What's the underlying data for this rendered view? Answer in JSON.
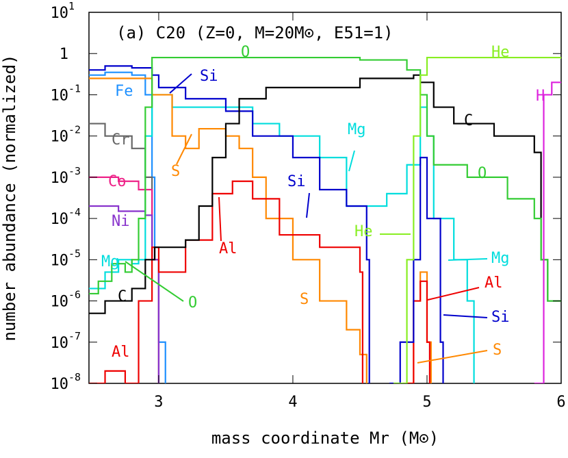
{
  "chart_data": {
    "type": "line",
    "step": true,
    "ylog": true,
    "title": "(a) C20 (Z=0, M=20M⊙, E51=1)",
    "xlabel": "mass coordinate Mr (M⊙)",
    "ylabel": "number abundance (normalized)",
    "xlim": [
      2.48,
      6
    ],
    "ylim": [
      1e-08,
      10
    ],
    "xticks": [
      3,
      4,
      5,
      6
    ],
    "yticks": [
      {
        "value": 10,
        "label": "10",
        "exponent": "1"
      },
      1,
      {
        "value": 0.1,
        "label": "10",
        "exponent": "-1"
      },
      {
        "value": 0.01,
        "label": "10",
        "exponent": "-2"
      },
      {
        "value": 0.001,
        "label": "10",
        "exponent": "-3"
      },
      {
        "value": 0.0001,
        "label": "10",
        "exponent": "-4"
      },
      {
        "value": 1e-05,
        "label": "10",
        "exponent": "-5"
      },
      {
        "value": 1e-06,
        "label": "10",
        "exponent": "-6"
      },
      {
        "value": 1e-07,
        "label": "10",
        "exponent": "-7"
      },
      {
        "value": 1e-08,
        "label": "10",
        "exponent": "-8"
      }
    ],
    "series": [
      {
        "name": "Fe",
        "color": "#1e90ff",
        "x": [
          2.48,
          2.6,
          2.8,
          2.9,
          2.95,
          2.97,
          3.0,
          3.05
        ],
        "values": [
          0.3,
          0.35,
          0.3,
          0.1,
          0.001,
          1e-05,
          1e-07,
          1e-08
        ]
      },
      {
        "name": "Cr",
        "color": "#666666",
        "x": [
          2.48,
          2.6,
          2.8,
          2.9,
          2.95,
          3.0
        ],
        "values": [
          0.02,
          0.01,
          0.005,
          0.001,
          1e-05,
          1e-08
        ]
      },
      {
        "name": "Co",
        "color": "#ee2288",
        "x": [
          2.48,
          2.7,
          2.85,
          2.95,
          3.0
        ],
        "values": [
          0.001,
          0.0008,
          0.0005,
          1e-05,
          1e-08
        ]
      },
      {
        "name": "Ni",
        "color": "#8833cc",
        "x": [
          2.48,
          2.7,
          2.9,
          2.95,
          3.0
        ],
        "values": [
          0.0002,
          0.00015,
          0.00012,
          1e-05,
          1e-08
        ]
      },
      {
        "name": "Mg",
        "color": "#00dddd",
        "x": [
          2.48,
          2.6,
          2.7,
          2.8,
          2.85,
          2.9,
          2.95,
          3.1,
          3.5,
          3.7,
          3.9,
          4.2,
          4.4,
          4.5,
          4.7,
          4.85,
          4.95,
          5.0,
          5.05,
          5.2,
          5.3,
          5.35
        ],
        "values": [
          2e-06,
          5e-06,
          1e-05,
          8e-06,
          1e-05,
          0.01,
          0.1,
          0.05,
          0.05,
          0.02,
          0.01,
          0.003,
          0.0002,
          0.0002,
          0.0004,
          0.002,
          0.05,
          0.01,
          0.0001,
          1e-05,
          1e-06,
          1e-08
        ]
      },
      {
        "name": "S",
        "color": "#ff8800",
        "x": [
          2.48,
          2.8,
          2.95,
          3.1,
          3.2,
          3.3,
          3.5,
          3.6,
          3.7,
          3.8,
          4.0,
          4.2,
          4.4,
          4.5,
          4.55,
          4.7,
          4.85,
          4.9,
          4.95,
          5.0,
          5.03
        ],
        "values": [
          0.25,
          0.25,
          0.1,
          0.01,
          0.005,
          0.015,
          0.01,
          0.005,
          0.001,
          0.0001,
          1e-05,
          1e-06,
          2e-07,
          5e-08,
          1e-08,
          null,
          1e-08,
          1e-06,
          5e-06,
          1e-07,
          1e-08
        ]
      },
      {
        "name": "Al",
        "color": "#ee0000",
        "x": [
          2.48,
          2.6,
          2.75,
          2.85,
          2.95,
          3.0,
          3.2,
          3.4,
          3.55,
          3.7,
          3.9,
          4.2,
          4.5,
          4.52,
          4.7,
          4.82,
          4.9,
          4.95,
          5.0,
          5.02
        ],
        "values": [
          1e-08,
          2e-08,
          1e-08,
          1e-06,
          2e-05,
          5e-06,
          3e-05,
          0.0004,
          0.0008,
          0.0003,
          4e-05,
          2e-05,
          5e-06,
          1e-08,
          null,
          1e-08,
          1e-06,
          3e-06,
          1e-07,
          1e-08
        ]
      },
      {
        "name": "Si",
        "color": "#0000cc",
        "x": [
          2.48,
          2.6,
          2.8,
          2.95,
          3.0,
          3.2,
          3.5,
          3.7,
          4.0,
          4.2,
          4.4,
          4.55,
          4.57,
          4.65,
          4.72,
          4.8,
          4.9,
          4.95,
          5.0,
          5.1,
          5.12
        ],
        "values": [
          0.4,
          0.5,
          0.45,
          0.3,
          0.15,
          0.08,
          0.04,
          0.01,
          0.003,
          0.0005,
          0.0002,
          1e-05,
          1e-08,
          null,
          1e-08,
          1e-07,
          1e-05,
          0.003,
          0.0001,
          1e-07,
          1e-08
        ]
      },
      {
        "name": "C",
        "color": "#000000",
        "x": [
          2.48,
          2.6,
          2.8,
          2.9,
          2.97,
          3.2,
          3.3,
          3.4,
          3.5,
          3.6,
          3.8,
          4.5,
          4.9,
          4.95,
          5.05,
          5.2,
          5.5,
          5.8,
          5.85,
          5.9,
          6.0
        ],
        "values": [
          5e-07,
          1e-06,
          2e-06,
          1e-05,
          2e-05,
          3e-05,
          0.0002,
          0.003,
          0.02,
          0.08,
          0.15,
          0.25,
          0.3,
          0.2,
          0.05,
          0.02,
          0.01,
          0.004,
          1e-05,
          1e-06,
          1e-06
        ]
      },
      {
        "name": "O",
        "color": "#33cc33",
        "x": [
          2.48,
          2.55,
          2.65,
          2.75,
          2.8,
          2.85,
          2.9,
          2.95,
          3.5,
          4.5,
          4.85,
          4.95,
          5.0,
          5.05,
          5.3,
          5.6,
          5.8,
          5.85,
          5.9,
          6.0
        ],
        "values": [
          1.5e-06,
          3e-06,
          8e-06,
          5e-06,
          1e-05,
          0.0001,
          0.05,
          0.8,
          0.8,
          0.7,
          0.4,
          0.1,
          0.01,
          0.002,
          0.001,
          0.0003,
          0.0001,
          1e-05,
          1e-06,
          1e-06
        ]
      },
      {
        "name": "He",
        "color": "#88ee22",
        "x": [
          4.75,
          4.85,
          4.9,
          4.95,
          5.0,
          5.5,
          6.0
        ],
        "values": [
          1e-08,
          1e-05,
          0.01,
          0.3,
          0.8,
          0.8,
          0.75
        ]
      },
      {
        "name": "H",
        "color": "#dd22dd",
        "x": [
          5.8,
          5.87,
          5.93,
          6.0
        ],
        "values": [
          1e-08,
          0.1,
          0.2,
          0.2
        ]
      }
    ],
    "annotations": [
      {
        "text": "Si",
        "color": "#0000cc"
      },
      {
        "text": "O",
        "color": "#33cc33"
      },
      {
        "text": "He",
        "color": "#88ee22"
      },
      {
        "text": "Fe",
        "color": "#1e90ff"
      },
      {
        "text": "H",
        "color": "#dd22dd"
      },
      {
        "text": "C",
        "color": "#000000"
      },
      {
        "text": "Cr",
        "color": "#666666"
      },
      {
        "text": "S",
        "color": "#ff8800"
      },
      {
        "text": "Mg",
        "color": "#00dddd"
      },
      {
        "text": "O",
        "color": "#33cc33"
      },
      {
        "text": "Co",
        "color": "#ee2288"
      },
      {
        "text": "Si",
        "color": "#0000cc"
      },
      {
        "text": "Ni",
        "color": "#8833cc"
      },
      {
        "text": "He",
        "color": "#88ee22"
      },
      {
        "text": "Al",
        "color": "#ee0000"
      },
      {
        "text": "Mg",
        "color": "#00dddd"
      },
      {
        "text": "Mg",
        "color": "#00dddd"
      },
      {
        "text": "O",
        "color": "#33cc33"
      },
      {
        "text": "Al",
        "color": "#ee0000"
      },
      {
        "text": "C",
        "color": "#000000"
      },
      {
        "text": "S",
        "color": "#ff8800"
      },
      {
        "text": "Si",
        "color": "#0000cc"
      },
      {
        "text": "Al",
        "color": "#ee0000"
      },
      {
        "text": "S",
        "color": "#ff8800"
      }
    ]
  }
}
